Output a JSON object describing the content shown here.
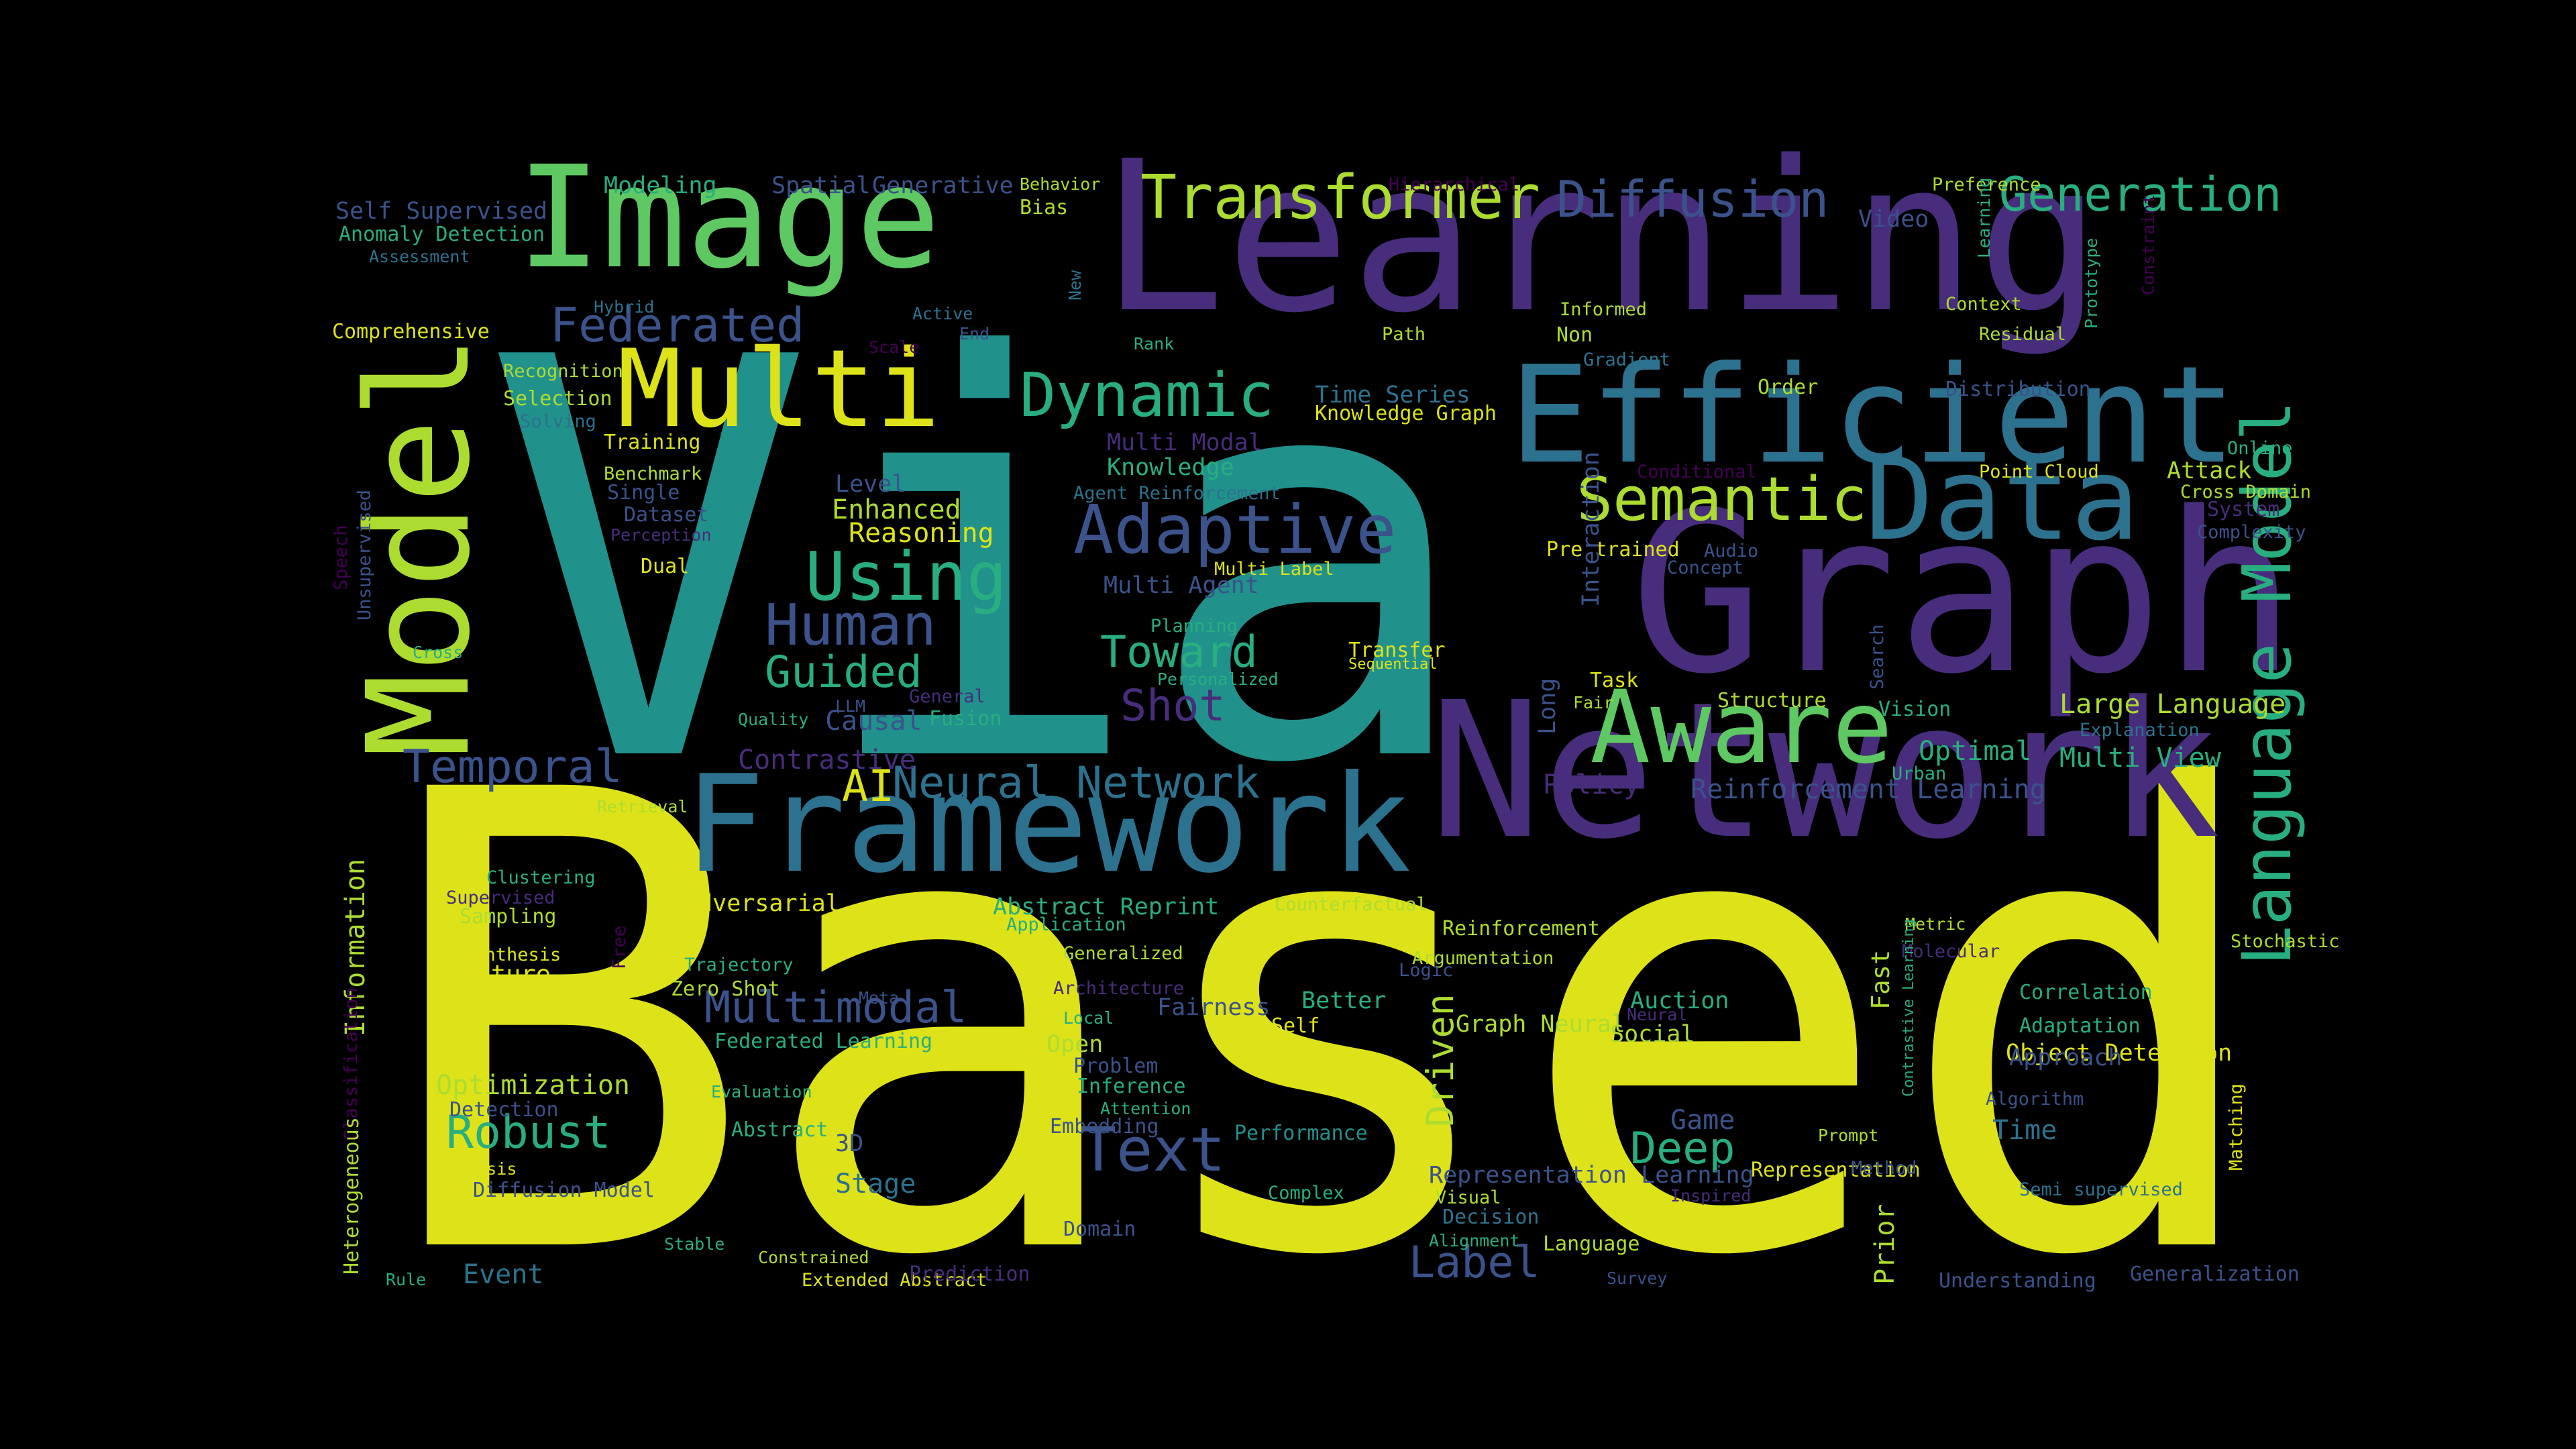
{
  "palette": {
    "yellow": "#dde318",
    "lime": "#addc30",
    "green": "#5ec962",
    "seagreen": "#28ae80",
    "teal": "#21918c",
    "blue": "#2c728e",
    "indigo": "#3b528b",
    "purple": "#472d7b",
    "deep": "#440154"
  },
  "words": [
    {
      "text": "Based",
      "color": "yellow"
    },
    {
      "text": "Via",
      "color": "teal"
    },
    {
      "text": "Learning",
      "color": "purple"
    },
    {
      "text": "Graph",
      "color": "purple"
    },
    {
      "text": "Network",
      "color": "purple"
    },
    {
      "text": "Framework",
      "color": "blue"
    },
    {
      "text": "Image",
      "color": "green"
    },
    {
      "text": "Model",
      "color": "lime"
    },
    {
      "text": "Efficient",
      "color": "blue"
    },
    {
      "text": "Multi",
      "color": "yellow"
    },
    {
      "text": "Data",
      "color": "blue"
    },
    {
      "text": "Aware",
      "color": "green"
    },
    {
      "text": "Transformer",
      "color": "lime"
    },
    {
      "text": "Diffusion",
      "color": "indigo"
    },
    {
      "text": "Generation",
      "color": "seagreen"
    },
    {
      "text": "Dynamic",
      "color": "seagreen"
    },
    {
      "text": "Semantic",
      "color": "lime"
    },
    {
      "text": "Adaptive",
      "color": "indigo"
    },
    {
      "text": "Federated",
      "color": "indigo"
    },
    {
      "text": "Using",
      "color": "seagreen"
    },
    {
      "text": "Human",
      "color": "indigo"
    },
    {
      "text": "Guided",
      "color": "seagreen"
    },
    {
      "text": "Toward",
      "color": "seagreen"
    },
    {
      "text": "Shot",
      "color": "purple"
    },
    {
      "text": "Temporal",
      "color": "indigo"
    },
    {
      "text": "Neural Network",
      "color": "blue"
    },
    {
      "text": "AI",
      "color": "yellow"
    },
    {
      "text": "Language Model",
      "color": "seagreen"
    },
    {
      "text": "Robust",
      "color": "seagreen"
    },
    {
      "text": "Text",
      "color": "indigo"
    },
    {
      "text": "Multimodal",
      "color": "indigo"
    },
    {
      "text": "Deep",
      "color": "seagreen"
    },
    {
      "text": "Label",
      "color": "indigo"
    },
    {
      "text": "Driven",
      "color": "lime"
    },
    {
      "text": "Information",
      "color": "lime"
    },
    {
      "text": "Large Language",
      "color": "lime"
    },
    {
      "text": "Reinforcement Learning",
      "color": "indigo"
    },
    {
      "text": "Multi View",
      "color": "seagreen"
    },
    {
      "text": "Optimal",
      "color": "seagreen"
    },
    {
      "text": "Policy",
      "color": "purple"
    },
    {
      "text": "Causal",
      "color": "indigo"
    },
    {
      "text": "Contrastive",
      "color": "purple"
    },
    {
      "text": "Reasoning",
      "color": "yellow"
    },
    {
      "text": "Enhanced",
      "color": "lime"
    },
    {
      "text": "Level",
      "color": "indigo"
    },
    {
      "text": "Multi Modal",
      "color": "purple"
    },
    {
      "text": "Knowledge",
      "color": "seagreen"
    },
    {
      "text": "Multi Agent",
      "color": "indigo"
    },
    {
      "text": "Time Series",
      "color": "blue"
    },
    {
      "text": "Knowledge Graph",
      "color": "yellow"
    },
    {
      "text": "Distribution",
      "color": "indigo"
    },
    {
      "text": "Attack",
      "color": "lime"
    },
    {
      "text": "Cross Domain",
      "color": "lime"
    },
    {
      "text": "System",
      "color": "purple"
    },
    {
      "text": "Complexity",
      "color": "indigo"
    },
    {
      "text": "Online",
      "color": "seagreen"
    },
    {
      "text": "Point Cloud",
      "color": "yellow"
    },
    {
      "text": "Context",
      "color": "lime"
    },
    {
      "text": "Video",
      "color": "indigo"
    },
    {
      "text": "Preference",
      "color": "lime"
    },
    {
      "text": "Hierarchical",
      "color": "deep"
    },
    {
      "text": "Behavior",
      "color": "lime"
    },
    {
      "text": "Bias",
      "color": "lime"
    },
    {
      "text": "Generative",
      "color": "indigo"
    },
    {
      "text": "Spatial",
      "color": "indigo"
    },
    {
      "text": "Modeling",
      "color": "seagreen"
    },
    {
      "text": "Self Supervised",
      "color": "indigo"
    },
    {
      "text": "Anomaly Detection",
      "color": "seagreen"
    },
    {
      "text": "Assessment",
      "color": "blue"
    },
    {
      "text": "Hybrid",
      "color": "blue"
    },
    {
      "text": "Comprehensive",
      "color": "yellow"
    },
    {
      "text": "Recognition",
      "color": "lime"
    },
    {
      "text": "Selection",
      "color": "lime"
    },
    {
      "text": "Solving",
      "color": "blue"
    },
    {
      "text": "Training",
      "color": "yellow"
    },
    {
      "text": "Benchmark",
      "color": "lime"
    },
    {
      "text": "Single",
      "color": "indigo"
    },
    {
      "text": "Dataset",
      "color": "indigo"
    },
    {
      "text": "Perception",
      "color": "purple"
    },
    {
      "text": "Dual",
      "color": "yellow"
    },
    {
      "text": "Active",
      "color": "blue"
    },
    {
      "text": "Scale",
      "color": "deep"
    },
    {
      "text": "End",
      "color": "indigo"
    },
    {
      "text": "Rank",
      "color": "seagreen"
    },
    {
      "text": "Path",
      "color": "lime"
    },
    {
      "text": "Informed",
      "color": "lime"
    },
    {
      "text": "Non",
      "color": "lime"
    },
    {
      "text": "Gradient",
      "color": "blue"
    },
    {
      "text": "Order",
      "color": "lime"
    },
    {
      "text": "Residual",
      "color": "lime"
    },
    {
      "text": "Conditional",
      "color": "deep"
    },
    {
      "text": "Agent Reinforcement",
      "color": "blue"
    },
    {
      "text": "Pre trained",
      "color": "yellow"
    },
    {
      "text": "Audio",
      "color": "indigo"
    },
    {
      "text": "Concept",
      "color": "indigo"
    },
    {
      "text": "Multi Label",
      "color": "yellow"
    },
    {
      "text": "Planning",
      "color": "seagreen"
    },
    {
      "text": "Transfer",
      "color": "yellow"
    },
    {
      "text": "Sequential",
      "color": "yellow"
    },
    {
      "text": "Personalized",
      "color": "seagreen"
    },
    {
      "text": "Task",
      "color": "yellow"
    },
    {
      "text": "Fair",
      "color": "lime"
    },
    {
      "text": "Structure",
      "color": "lime"
    },
    {
      "text": "Vision",
      "color": "seagreen"
    },
    {
      "text": "Explanation",
      "color": "blue"
    },
    {
      "text": "Urban",
      "color": "seagreen"
    },
    {
      "text": "Quality",
      "color": "seagreen"
    },
    {
      "text": "LLM",
      "color": "indigo"
    },
    {
      "text": "General",
      "color": "purple"
    },
    {
      "text": "Fusion",
      "color": "seagreen"
    },
    {
      "text": "Retrieval",
      "color": "lime"
    },
    {
      "text": "Clustering",
      "color": "seagreen"
    },
    {
      "text": "Supervised",
      "color": "purple"
    },
    {
      "text": "Sampling",
      "color": "lime"
    },
    {
      "text": "Synthesis",
      "color": "yellow"
    },
    {
      "text": "Feature",
      "color": "yellow"
    },
    {
      "text": "Adversarial",
      "color": "yellow"
    },
    {
      "text": "Trajectory",
      "color": "seagreen"
    },
    {
      "text": "Zero Shot",
      "color": "lime"
    },
    {
      "text": "Meta",
      "color": "indigo"
    },
    {
      "text": "Federated Learning",
      "color": "seagreen"
    },
    {
      "text": "Abstract Reprint",
      "color": "seagreen"
    },
    {
      "text": "Application",
      "color": "seagreen"
    },
    {
      "text": "Generalized",
      "color": "lime"
    },
    {
      "text": "Architecture",
      "color": "purple"
    },
    {
      "text": "Counterfactual",
      "color": "lime"
    },
    {
      "text": "Reinforcement",
      "color": "lime"
    },
    {
      "text": "Argumentation",
      "color": "lime"
    },
    {
      "text": "Logic",
      "color": "indigo"
    },
    {
      "text": "Better",
      "color": "seagreen"
    },
    {
      "text": "Fairness",
      "color": "indigo"
    },
    {
      "text": "Local",
      "color": "seagreen"
    },
    {
      "text": "Open",
      "color": "lime"
    },
    {
      "text": "Problem",
      "color": "indigo"
    },
    {
      "text": "Inference",
      "color": "seagreen"
    },
    {
      "text": "Self",
      "color": "yellow"
    },
    {
      "text": "Graph Neural",
      "color": "lime"
    },
    {
      "text": "Neural",
      "color": "purple"
    },
    {
      "text": "Auction",
      "color": "seagreen"
    },
    {
      "text": "Social",
      "color": "lime"
    },
    {
      "text": "Optimization",
      "color": "lime"
    },
    {
      "text": "Detection",
      "color": "indigo"
    },
    {
      "text": "Classification",
      "color": "deep"
    },
    {
      "text": "Heterogeneous",
      "color": "lime"
    },
    {
      "text": "Analysis",
      "color": "yellow"
    },
    {
      "text": "Diffusion Model",
      "color": "indigo"
    },
    {
      "text": "Evaluation",
      "color": "seagreen"
    },
    {
      "text": "Abstract",
      "color": "seagreen"
    },
    {
      "text": "3D",
      "color": "indigo"
    },
    {
      "text": "Embedding",
      "color": "indigo"
    },
    {
      "text": "Attention",
      "color": "seagreen"
    },
    {
      "text": "Performance",
      "color": "teal"
    },
    {
      "text": "Complex",
      "color": "seagreen"
    },
    {
      "text": "Stage",
      "color": "blue"
    },
    {
      "text": "Domain",
      "color": "indigo"
    },
    {
      "text": "Stable",
      "color": "seagreen"
    },
    {
      "text": "Constrained",
      "color": "lime"
    },
    {
      "text": "Rule",
      "color": "seagreen"
    },
    {
      "text": "Event",
      "color": "blue"
    },
    {
      "text": "Extended Abstract",
      "color": "yellow"
    },
    {
      "text": "Prediction",
      "color": "purple"
    },
    {
      "text": "Representation Learning",
      "color": "indigo"
    },
    {
      "text": "Visual",
      "color": "lime"
    },
    {
      "text": "Decision",
      "color": "blue"
    },
    {
      "text": "Alignment",
      "color": "seagreen"
    },
    {
      "text": "Language",
      "color": "lime"
    },
    {
      "text": "Game",
      "color": "indigo"
    },
    {
      "text": "Representation",
      "color": "yellow"
    },
    {
      "text": "Method",
      "color": "indigo"
    },
    {
      "text": "Prompt",
      "color": "lime"
    },
    {
      "text": "Inspired",
      "color": "purple"
    },
    {
      "text": "Prior",
      "color": "lime"
    },
    {
      "text": "Survey",
      "color": "indigo"
    },
    {
      "text": "Understanding",
      "color": "indigo"
    },
    {
      "text": "Generalization",
      "color": "indigo"
    },
    {
      "text": "Semi supervised",
      "color": "blue"
    },
    {
      "text": "Time",
      "color": "blue"
    },
    {
      "text": "Algorithm",
      "color": "indigo"
    },
    {
      "text": "Object Detection",
      "color": "yellow"
    },
    {
      "text": "Approach",
      "color": "indigo"
    },
    {
      "text": "Adaptation",
      "color": "seagreen"
    },
    {
      "text": "Correlation",
      "color": "seagreen"
    },
    {
      "text": "Stochastic",
      "color": "lime"
    },
    {
      "text": "Metric",
      "color": "lime"
    },
    {
      "text": "Molecular",
      "color": "purple"
    },
    {
      "text": "Fast",
      "color": "lime"
    },
    {
      "text": "Search",
      "color": "indigo"
    },
    {
      "text": "Long",
      "color": "indigo"
    },
    {
      "text": "Interaction",
      "color": "indigo"
    },
    {
      "text": "Free",
      "color": "deep"
    },
    {
      "text": "Speech",
      "color": "deep"
    },
    {
      "text": "Unsupervised",
      "color": "indigo"
    },
    {
      "text": "Cross",
      "color": "seagreen"
    },
    {
      "text": "New",
      "color": "blue"
    },
    {
      "text": "Learning",
      "color": "seagreen"
    },
    {
      "text": "Prototype",
      "color": "seagreen"
    },
    {
      "text": "Constraint",
      "color": "deep"
    },
    {
      "text": "Matching",
      "color": "yellow"
    },
    {
      "text": "Contrastive Learning",
      "color": "seagreen"
    },
    {
      "text": "Scene",
      "color": "lime"
    }
  ]
}
